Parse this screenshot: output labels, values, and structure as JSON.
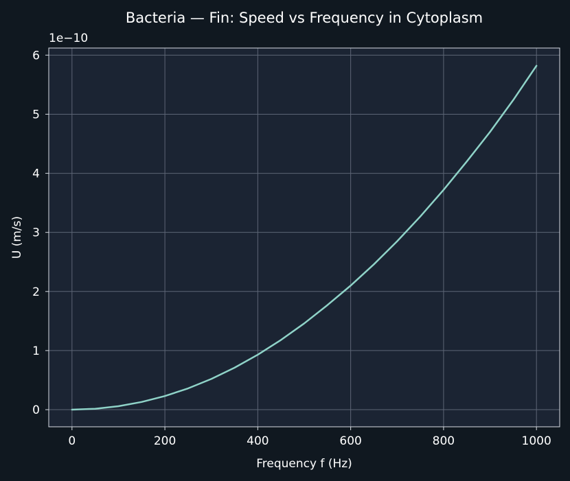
{
  "chart_data": {
    "type": "line",
    "title": "Bacteria — Fin: Speed vs Frequency in Cytoplasm",
    "xlabel": "Frequency f (Hz)",
    "ylabel": "U (m/s)",
    "y_scale_label": "1e−10",
    "xlim": [
      -50,
      1050
    ],
    "ylim": [
      -0.29,
      6.12
    ],
    "xticks": [
      0,
      200,
      400,
      600,
      800,
      1000
    ],
    "xtick_labels": [
      "0",
      "200",
      "400",
      "600",
      "800",
      "1000"
    ],
    "yticks": [
      0,
      1,
      2,
      3,
      4,
      5,
      6
    ],
    "ytick_labels": [
      "0",
      "1",
      "2",
      "3",
      "4",
      "5",
      "6"
    ],
    "grid": true,
    "series": [
      {
        "color": "#8fd3c8",
        "x": [
          0,
          50,
          100,
          150,
          200,
          250,
          300,
          350,
          400,
          450,
          500,
          550,
          600,
          650,
          700,
          750,
          800,
          850,
          900,
          950,
          1000
        ],
        "y": [
          0.0,
          0.015,
          0.058,
          0.13,
          0.23,
          0.36,
          0.52,
          0.71,
          0.93,
          1.18,
          1.46,
          1.77,
          2.1,
          2.46,
          2.85,
          3.27,
          3.72,
          4.2,
          4.7,
          5.24,
          5.82
        ]
      }
    ]
  },
  "colors": {
    "page_background": "#101820",
    "plot_background": "#1b2433",
    "grid": "#5d6676",
    "axes": "#d8dde4",
    "text": "#ffffff"
  }
}
